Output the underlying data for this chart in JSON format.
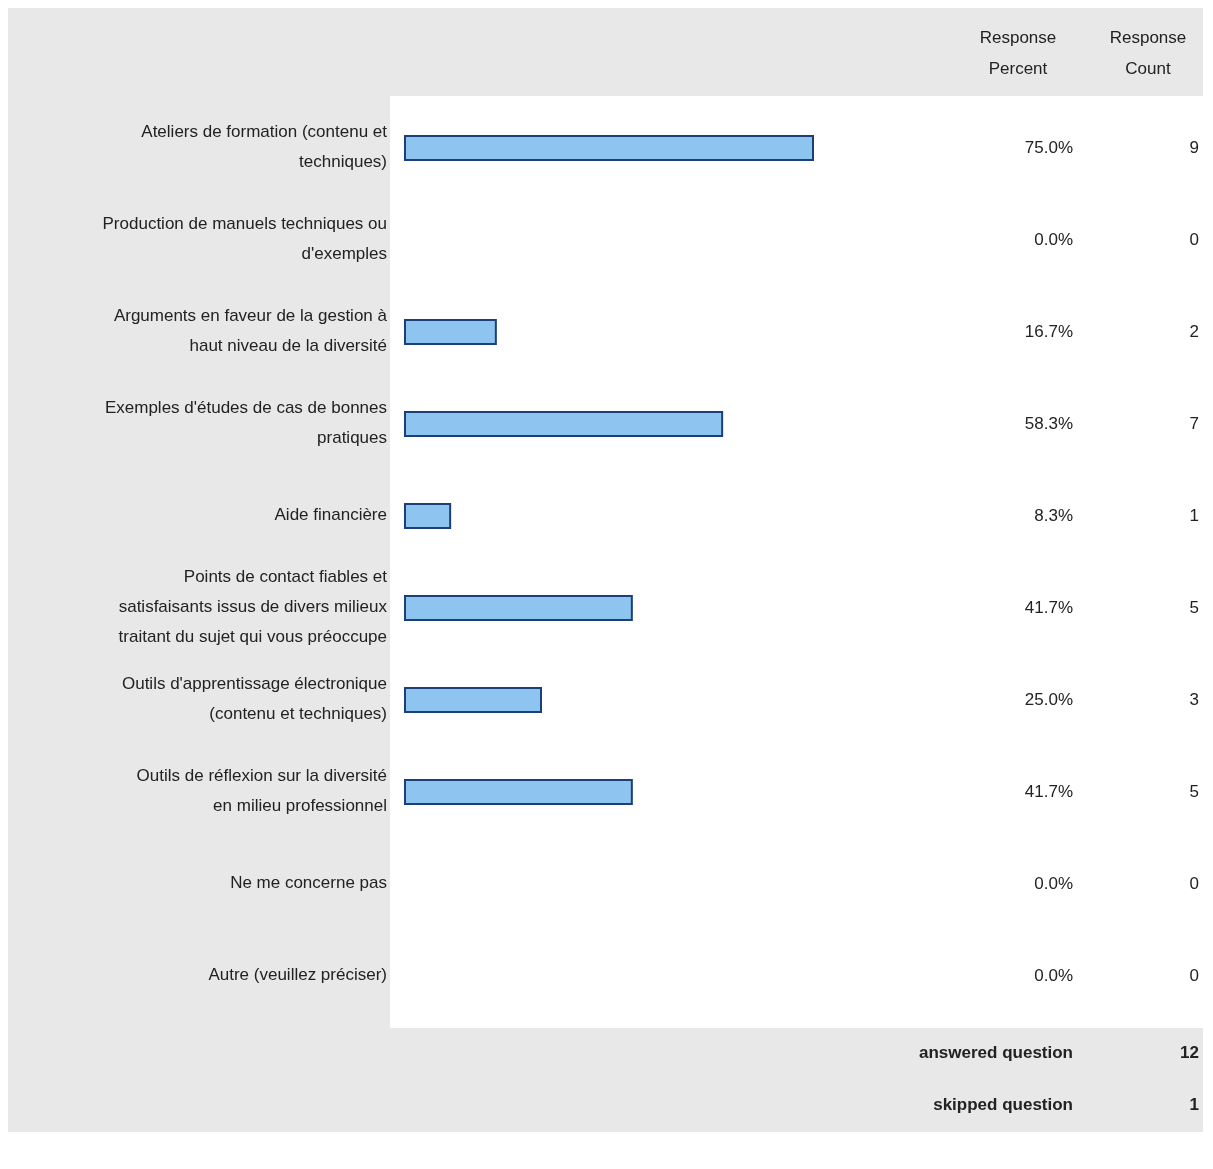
{
  "chart_data": {
    "type": "bar",
    "orientation": "horizontal",
    "categories": [
      "Ateliers de formation (contenu et techniques)",
      "Production de manuels techniques ou d'exemples",
      "Arguments en faveur de la gestion à haut niveau de la diversité",
      "Exemples d'études de cas de bonnes pratiques",
      "Aide financière",
      "Points de contact fiables et satisfaisants issus de divers milieux traitant du sujet qui vous préoccupe",
      "Outils d'apprentissage électronique (contenu et techniques)",
      "Outils de réflexion sur la diversité en milieu professionnel",
      "Ne me concerne pas",
      "Autre (veuillez préciser)"
    ],
    "values": [
      75.0,
      0.0,
      16.7,
      58.3,
      8.3,
      41.7,
      25.0,
      41.7,
      0.0,
      0.0
    ],
    "value_labels": [
      "75.0%",
      "0.0%",
      "16.7%",
      "58.3%",
      "8.3%",
      "41.7%",
      "25.0%",
      "41.7%",
      "0.0%",
      "0.0%"
    ],
    "color": "#8ec5f0",
    "tick_labels": "y",
    "annotations": [
      "Response Percent",
      "Response Count",
      "9",
      "0",
      "2",
      "7",
      "1",
      "5",
      "3",
      "5",
      "0",
      "0",
      "answered question",
      "12",
      "skipped question",
      "1"
    ]
  }
}
